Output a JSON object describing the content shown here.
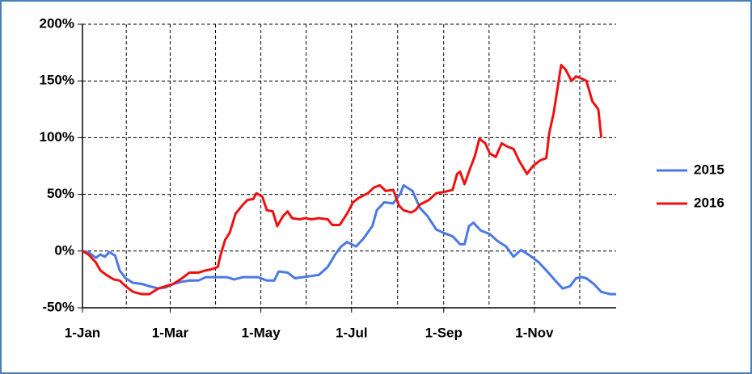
{
  "chart_data": {
    "type": "line",
    "xlim": [
      0,
      359
    ],
    "xticks": [
      {
        "value": 0,
        "label": "1-Jan"
      },
      {
        "value": 59,
        "label": "1-Mar"
      },
      {
        "value": 120,
        "label": "1-May"
      },
      {
        "value": 181,
        "label": "1-Jul"
      },
      {
        "value": 243,
        "label": "1-Sep"
      },
      {
        "value": 304,
        "label": "1-Nov"
      }
    ],
    "ylim": [
      -50,
      200
    ],
    "yticks": [
      {
        "value": -50,
        "label": "-50%"
      },
      {
        "value": 0,
        "label": "0%"
      },
      {
        "value": 50,
        "label": "50%"
      },
      {
        "value": 100,
        "label": "100%"
      },
      {
        "value": 150,
        "label": "150%"
      },
      {
        "value": 200,
        "label": "200%"
      }
    ],
    "grid": true,
    "legend": "right",
    "series": [
      {
        "name": "2015",
        "color": "#4a78e6",
        "x": [
          0,
          4,
          9,
          12,
          15,
          18,
          22,
          25,
          29,
          34,
          40,
          45,
          51,
          56,
          61,
          67,
          72,
          78,
          83,
          89,
          97,
          102,
          108,
          113,
          118,
          124,
          129,
          132,
          138,
          143,
          148,
          154,
          159,
          165,
          170,
          174,
          178,
          184,
          189,
          195,
          198,
          203,
          209,
          214,
          216,
          222,
          227,
          232,
          238,
          243,
          249,
          254,
          257,
          260,
          263,
          268,
          274,
          279,
          285,
          290,
          295,
          301,
          307,
          312,
          318,
          323,
          328,
          332,
          336,
          339,
          344,
          349,
          355,
          359
        ],
        "values": [
          0,
          -1,
          -6,
          -3,
          -5,
          -1,
          -4,
          -17,
          -24,
          -28,
          -29,
          -31,
          -33,
          -32,
          -29,
          -27,
          -26,
          -26,
          -23,
          -23,
          -23,
          -25,
          -23,
          -23,
          -23,
          -26,
          -26,
          -18,
          -19,
          -24,
          -23,
          -22,
          -21,
          -14,
          -3,
          4,
          8,
          4,
          11,
          22,
          36,
          43,
          42,
          51,
          58,
          53,
          38,
          31,
          19,
          16,
          13,
          6,
          6,
          22,
          25,
          18,
          15,
          9,
          4,
          -5,
          1,
          -4,
          -10,
          -17,
          -26,
          -33,
          -31,
          -24,
          -23,
          -24,
          -29,
          -36,
          -38,
          -38
        ]
      },
      {
        "name": "2016",
        "color": "#ee1111",
        "x": [
          0,
          4,
          9,
          12,
          16,
          21,
          25,
          29,
          34,
          40,
          45,
          51,
          56,
          61,
          67,
          72,
          78,
          83,
          87,
          91,
          93,
          96,
          99,
          103,
          108,
          111,
          115,
          117,
          121,
          124,
          128,
          131,
          135,
          138,
          141,
          146,
          150,
          154,
          159,
          165,
          168,
          173,
          178,
          182,
          186,
          192,
          196,
          200,
          204,
          209,
          213,
          216,
          221,
          224,
          227,
          233,
          238,
          243,
          249,
          252,
          254,
          257,
          260,
          264,
          267,
          271,
          274,
          278,
          282,
          286,
          290,
          294,
          299,
          303,
          308,
          312,
          314,
          317,
          320,
          322,
          325,
          329,
          332,
          336,
          339,
          343,
          347,
          349
        ],
        "values": [
          0,
          -3,
          -10,
          -17,
          -21,
          -25,
          -26,
          -31,
          -36,
          -38,
          -38,
          -33,
          -31,
          -29,
          -24,
          -19,
          -19,
          -17,
          -16,
          -14,
          -3,
          10,
          16,
          33,
          41,
          45,
          46,
          51,
          48,
          36,
          35,
          22,
          31,
          35,
          29,
          28,
          29,
          28,
          29,
          28,
          23,
          23,
          33,
          43,
          47,
          51,
          56,
          58,
          53,
          54,
          40,
          36,
          34,
          36,
          41,
          45,
          51,
          52,
          54,
          68,
          70,
          59,
          70,
          84,
          99,
          95,
          86,
          83,
          95,
          92,
          90,
          79,
          68,
          75,
          80,
          82,
          104,
          122,
          147,
          164,
          160,
          150,
          154,
          152,
          150,
          132,
          125,
          100
        ]
      }
    ]
  }
}
